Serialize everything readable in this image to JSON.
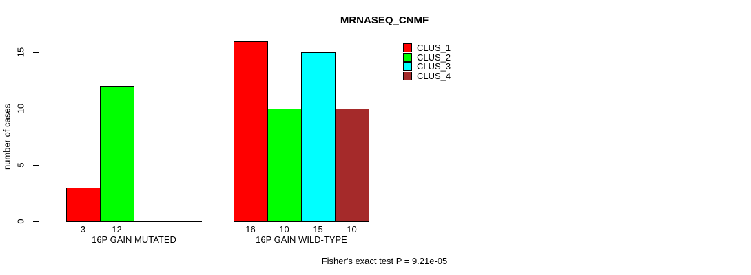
{
  "title": "MRNASEQ_CNMF",
  "y_axis_label": "number of cases",
  "footer_note": "Fisher's exact test P = 9.21e-05",
  "legend": {
    "items": [
      {
        "label": "CLUS_1",
        "color": "#FF0000"
      },
      {
        "label": "CLUS_2",
        "color": "#00FF00"
      },
      {
        "label": "CLUS_3",
        "color": "#00FFFF"
      },
      {
        "label": "CLUS_4",
        "color": "#A52A2A"
      }
    ]
  },
  "chart_data": {
    "type": "bar",
    "title": "MRNASEQ_CNMF",
    "ylabel": "number of cases",
    "ylim": [
      0,
      15
    ],
    "yticks": [
      0,
      5,
      10,
      15
    ],
    "grid": false,
    "legend_position": "top-right",
    "series": [
      "CLUS_1",
      "CLUS_2",
      "CLUS_3",
      "CLUS_4"
    ],
    "series_colors": [
      "#FF0000",
      "#00FF00",
      "#00FFFF",
      "#A52A2A"
    ],
    "groups": [
      {
        "category": "16P GAIN MUTATED",
        "values": [
          3,
          12,
          0,
          0
        ],
        "bar_labels": [
          "3",
          "12",
          "",
          ""
        ]
      },
      {
        "category": "16P GAIN WILD-TYPE",
        "values": [
          16,
          10,
          15,
          10
        ],
        "bar_labels": [
          "16",
          "10",
          "15",
          "10"
        ]
      }
    ],
    "annotation": "Fisher's exact test P = 9.21e-05"
  }
}
